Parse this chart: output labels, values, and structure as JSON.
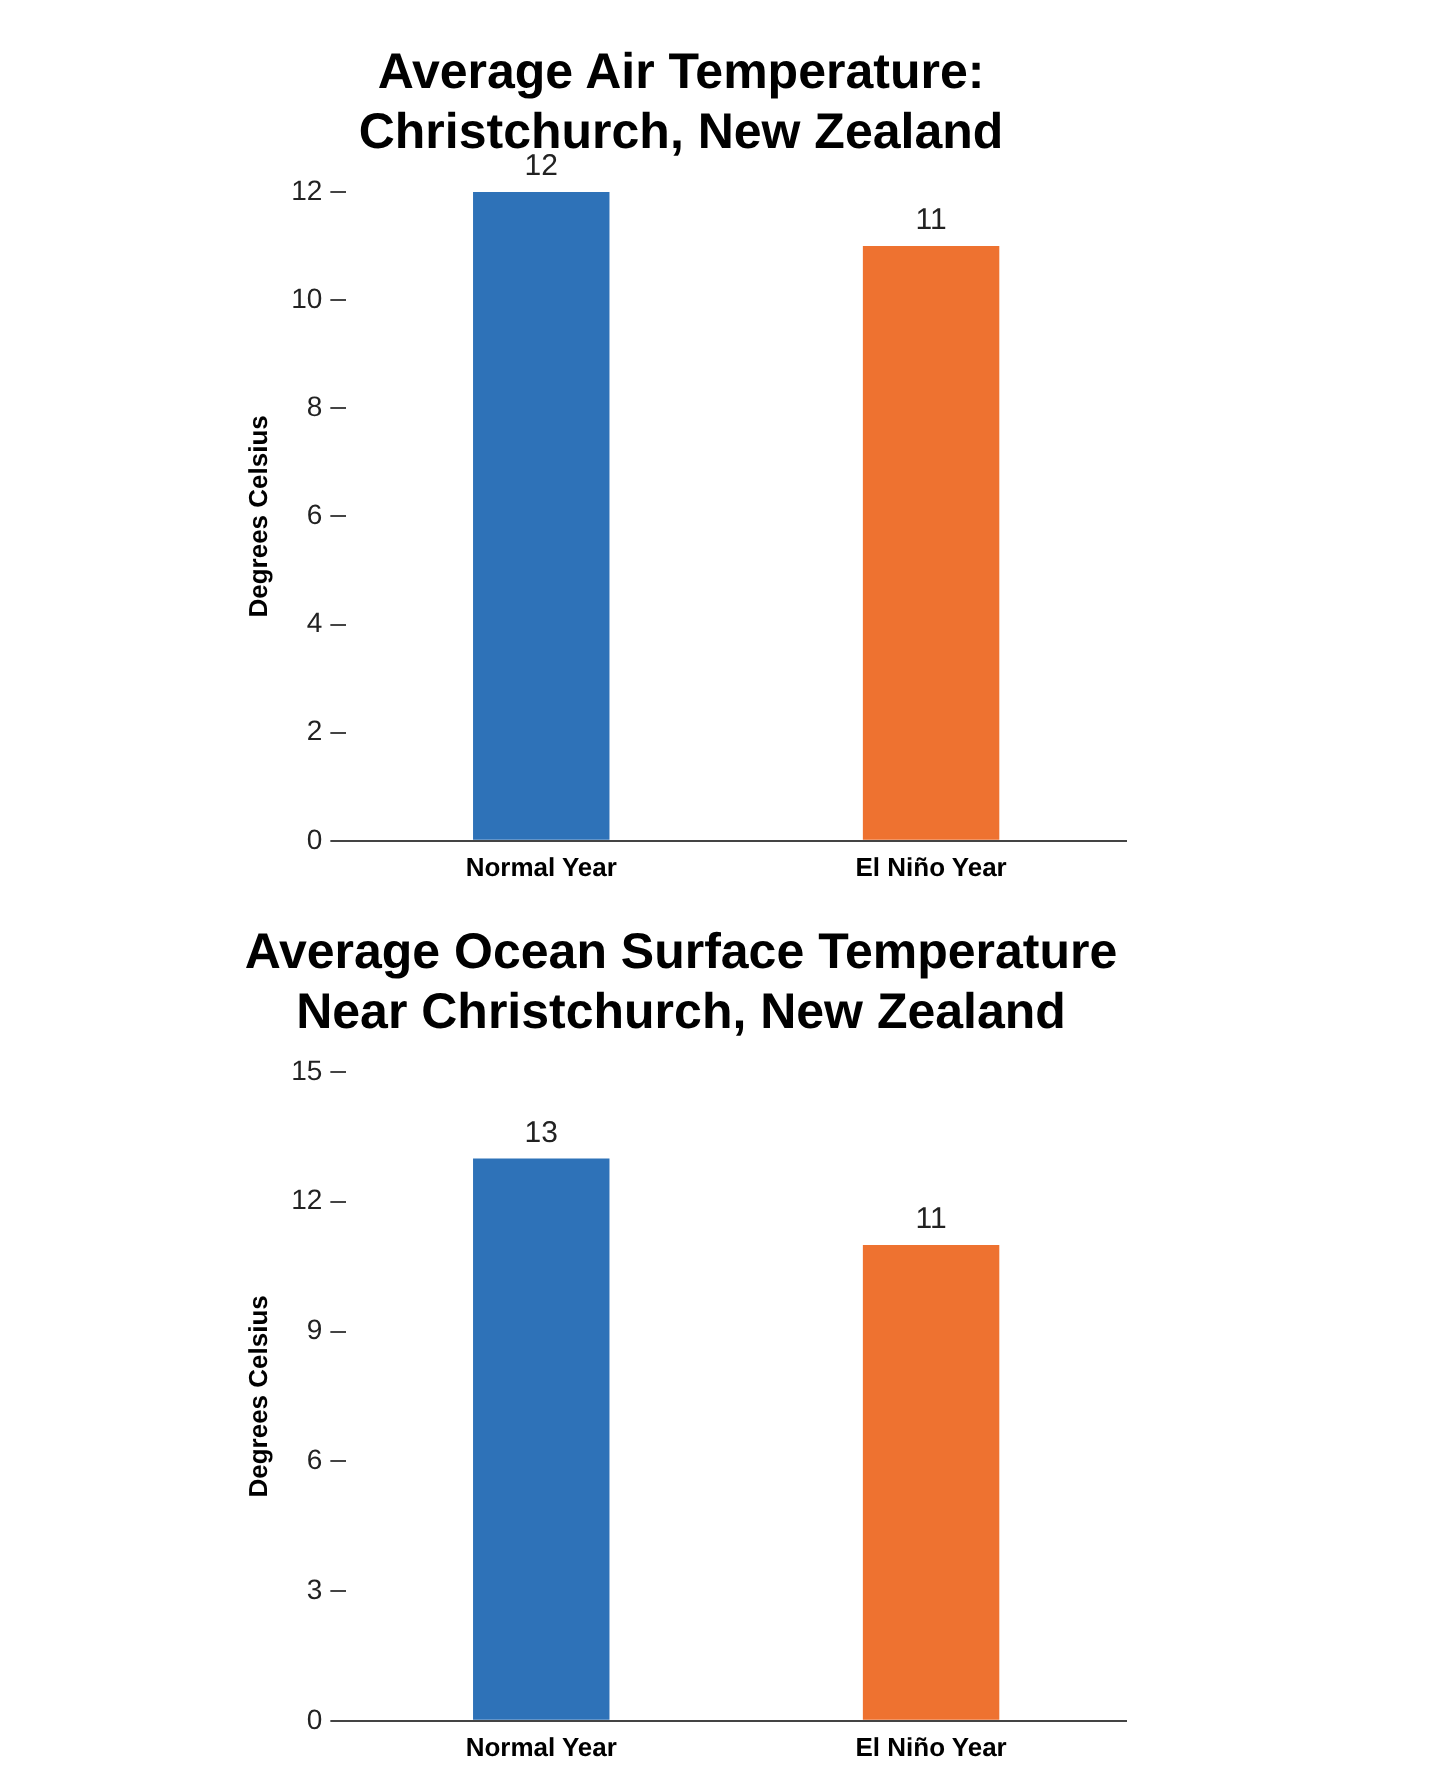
{
  "chart_data": [
    {
      "type": "bar",
      "title": "Average Air Temperature:\nChristchurch, New Zealand",
      "ylabel": "Degrees Celsius",
      "categories": [
        "Normal Year",
        "El Niño Year"
      ],
      "values": [
        12,
        11
      ],
      "colors": [
        "#2e72b8",
        "#ee7230"
      ],
      "ylim": [
        0,
        12
      ],
      "yticks": [
        0,
        2,
        4,
        6,
        8,
        10,
        12
      ],
      "data_labels": true
    },
    {
      "type": "bar",
      "title": "Average Ocean Surface Temperature\nNear Christchurch, New Zealand",
      "ylabel": "Degrees Celsius",
      "categories": [
        "Normal Year",
        "El Niño Year"
      ],
      "values": [
        13,
        11
      ],
      "colors": [
        "#2e72b8",
        "#ee7230"
      ],
      "ylim": [
        0,
        15
      ],
      "yticks": [
        0,
        3,
        6,
        9,
        12,
        15
      ],
      "data_labels": true
    }
  ]
}
